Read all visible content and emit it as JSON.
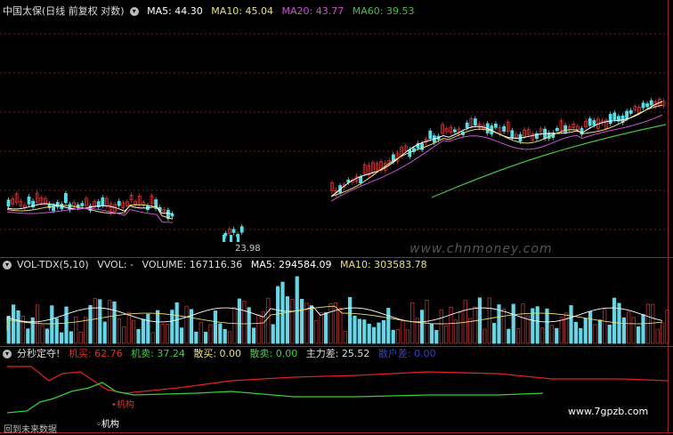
{
  "price_panel": {
    "title": "中国太保(日线 前复权 对数)",
    "ma5": "MA5: 44.30",
    "ma10": "MA10: 45.04",
    "ma20": "MA20: 43.77",
    "ma60": "MA60: 39.53",
    "low_label": "23.98",
    "colors": {
      "ma5": "#ffffff",
      "ma10": "#e8e070",
      "ma20": "#d050d0",
      "ma60": "#40c040",
      "up": "#e03030",
      "down": "#50e0e8"
    }
  },
  "volume_panel": {
    "title": "VOL-TDX(5,10)",
    "vvol": "VVOL: -",
    "volume": "VOLUME: 167116.36",
    "ma5": "MA5: 294584.09",
    "ma10": "MA10: 303583.78"
  },
  "indicator_panel": {
    "title": "分秒定夺!",
    "jimai": "机买: 62.76",
    "jimai2": "机卖: 37.24",
    "sanmai": "散买: 0.00",
    "sanmai2": "散卖: 0.00",
    "zhulicha": "主力差: 25.52",
    "zhuhu": "散户差: 0.00",
    "label_jigou_red": "•机构",
    "label_jigou": "◦机构",
    "footer": "回到未来数据"
  },
  "watermark": "www.chnmoney.com",
  "site": "www.7gpzb.com"
}
